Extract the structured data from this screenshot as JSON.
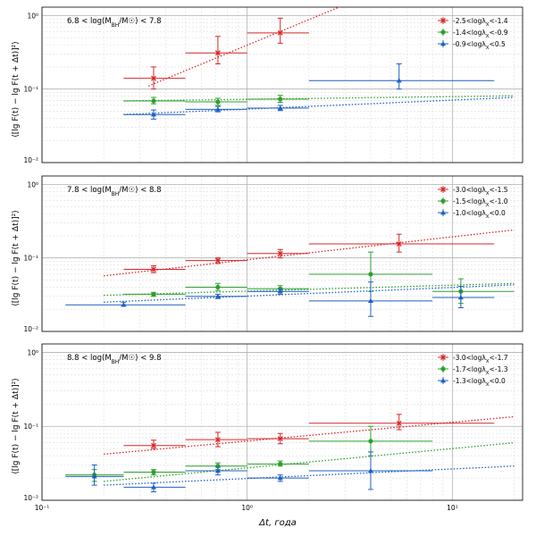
{
  "figure": {
    "xlabel": "Δt, года",
    "ylabel": "⟨[lg F(t) − lg F(t + Δt)]²⟩",
    "colors": {
      "red": "#d62728",
      "green": "#2ca02c",
      "blue": "#1f5fc4",
      "grid_major": "#b0b0b0",
      "grid_minor": "#dcdcdc",
      "axis": "#000000"
    },
    "x_ticks": [
      "10⁻¹",
      "10⁰",
      "10¹"
    ],
    "y_ticks": [
      "10⁻²",
      "10⁻¹",
      "10⁰"
    ]
  },
  "chart_data": [
    {
      "type": "scatter",
      "panel_label": "6.8 < log(M_BH/M☉) < 7.8",
      "xscale": "log",
      "yscale": "log",
      "xlim": [
        0.1,
        22
      ],
      "ylim": [
        0.01,
        1.3
      ],
      "grid": true,
      "legend_position": "top-right",
      "series": [
        {
          "name": "-2.5<logλ_X<-1.4",
          "color": "red",
          "marker": "x",
          "points": [
            {
              "x": 0.35,
              "xerr": [
                0.25,
                0.5
              ],
              "y": 0.14,
              "yerr": [
                0.1,
                0.2
              ]
            },
            {
              "x": 0.72,
              "xerr": [
                0.5,
                1.0
              ],
              "y": 0.31,
              "yerr": [
                0.22,
                0.52
              ]
            },
            {
              "x": 1.45,
              "xerr": [
                1.0,
                2.0
              ],
              "y": 0.58,
              "yerr": [
                0.42,
                0.92
              ]
            }
          ],
          "fit": {
            "x": [
              0.33,
              2.9
            ],
            "y": [
              0.11,
              1.35
            ]
          }
        },
        {
          "name": "-1.4<logλ_X<-0.9",
          "color": "green",
          "marker": "o",
          "points": [
            {
              "x": 0.35,
              "xerr": [
                0.25,
                0.5
              ],
              "y": 0.069,
              "yerr": [
                0.063,
                0.077
              ]
            },
            {
              "x": 0.72,
              "xerr": [
                0.5,
                1.0
              ],
              "y": 0.067,
              "yerr": [
                0.06,
                0.075
              ]
            },
            {
              "x": 1.45,
              "xerr": [
                1.0,
                2.0
              ],
              "y": 0.073,
              "yerr": [
                0.066,
                0.082
              ]
            }
          ],
          "fit": {
            "x": [
              0.25,
              20
            ],
            "y": [
              0.069,
              0.081
            ]
          }
        },
        {
          "name": "-0.9<logλ_X<0.5",
          "color": "blue",
          "marker": "^",
          "points": [
            {
              "x": 0.35,
              "xerr": [
                0.25,
                0.5
              ],
              "y": 0.045,
              "yerr": [
                0.039,
                0.052
              ]
            },
            {
              "x": 0.72,
              "xerr": [
                0.5,
                1.0
              ],
              "y": 0.053,
              "yerr": [
                0.049,
                0.058
              ]
            },
            {
              "x": 1.45,
              "xerr": [
                1.0,
                2.0
              ],
              "y": 0.055,
              "yerr": [
                0.051,
                0.06
              ]
            },
            {
              "x": 5.5,
              "xerr": [
                2.0,
                16.0
              ],
              "y": 0.13,
              "yerr": [
                0.1,
                0.22
              ]
            }
          ],
          "fit": {
            "x": [
              0.25,
              20
            ],
            "y": [
              0.045,
              0.077
            ]
          }
        }
      ]
    },
    {
      "type": "scatter",
      "panel_label": "7.8 < log(M_BH/M☉) < 8.8",
      "xscale": "log",
      "yscale": "log",
      "xlim": [
        0.1,
        22
      ],
      "ylim": [
        0.01,
        1.3
      ],
      "grid": true,
      "legend_position": "top-right",
      "series": [
        {
          "name": "-3.0<logλ_X<-1.5",
          "color": "red",
          "marker": "x",
          "points": [
            {
              "x": 0.35,
              "xerr": [
                0.25,
                0.5
              ],
              "y": 0.07,
              "yerr": [
                0.063,
                0.078
              ]
            },
            {
              "x": 0.72,
              "xerr": [
                0.5,
                1.0
              ],
              "y": 0.092,
              "yerr": [
                0.084,
                0.1
              ]
            },
            {
              "x": 1.45,
              "xerr": [
                1.0,
                2.0
              ],
              "y": 0.115,
              "yerr": [
                0.1,
                0.13
              ]
            },
            {
              "x": 5.5,
              "xerr": [
                2.0,
                16.0
              ],
              "y": 0.155,
              "yerr": [
                0.12,
                0.21
              ]
            }
          ],
          "fit": {
            "x": [
              0.2,
              20
            ],
            "y": [
              0.057,
              0.24
            ]
          }
        },
        {
          "name": "-1.5<logλ_X<-1.0",
          "color": "green",
          "marker": "o",
          "points": [
            {
              "x": 0.35,
              "xerr": [
                0.25,
                0.5
              ],
              "y": 0.032,
              "yerr": [
                0.03,
                0.034
              ]
            },
            {
              "x": 0.72,
              "xerr": [
                0.5,
                1.0
              ],
              "y": 0.04,
              "yerr": [
                0.036,
                0.045
              ]
            },
            {
              "x": 1.45,
              "xerr": [
                1.0,
                2.0
              ],
              "y": 0.038,
              "yerr": [
                0.035,
                0.042
              ]
            },
            {
              "x": 4.0,
              "xerr": [
                2.0,
                8.0
              ],
              "y": 0.06,
              "yerr": [
                0.035,
                0.12
              ]
            },
            {
              "x": 11.0,
              "xerr": [
                8.0,
                20.0
              ],
              "y": 0.035,
              "yerr": [
                0.024,
                0.052
              ]
            }
          ],
          "fit": {
            "x": [
              0.2,
              20
            ],
            "y": [
              0.031,
              0.045
            ]
          }
        },
        {
          "name": "-1.0<logλ_X<0.0",
          "color": "blue",
          "marker": "^",
          "points": [
            {
              "x": 0.25,
              "xerr": [
                0.13,
                0.5
              ],
              "y": 0.023,
              "yerr": [
                0.022,
                0.025
              ]
            },
            {
              "x": 0.72,
              "xerr": [
                0.5,
                1.0
              ],
              "y": 0.03,
              "yerr": [
                0.028,
                0.032
              ]
            },
            {
              "x": 1.45,
              "xerr": [
                1.0,
                2.0
              ],
              "y": 0.035,
              "yerr": [
                0.032,
                0.038
              ]
            },
            {
              "x": 4.0,
              "xerr": [
                2.0,
                8.0
              ],
              "y": 0.026,
              "yerr": [
                0.016,
                0.047
              ]
            },
            {
              "x": 11.0,
              "xerr": [
                8.0,
                16.0
              ],
              "y": 0.029,
              "yerr": [
                0.021,
                0.041
              ]
            }
          ],
          "fit": {
            "x": [
              0.2,
              20
            ],
            "y": [
              0.025,
              0.043
            ]
          }
        }
      ]
    },
    {
      "type": "scatter",
      "panel_label": "8.8 < log(M_BH/M☉) < 9.8",
      "xscale": "log",
      "yscale": "log",
      "xlim": [
        0.1,
        22
      ],
      "ylim": [
        0.01,
        1.3
      ],
      "grid": true,
      "legend_position": "top-right",
      "series": [
        {
          "name": "-3.0<logλ_X<-1.7",
          "color": "red",
          "marker": "x",
          "points": [
            {
              "x": 0.35,
              "xerr": [
                0.25,
                0.5
              ],
              "y": 0.055,
              "yerr": [
                0.05,
                0.065
              ]
            },
            {
              "x": 0.72,
              "xerr": [
                0.5,
                1.0
              ],
              "y": 0.066,
              "yerr": [
                0.053,
                0.083
              ]
            },
            {
              "x": 1.45,
              "xerr": [
                1.0,
                2.0
              ],
              "y": 0.068,
              "yerr": [
                0.058,
                0.08
              ]
            },
            {
              "x": 5.5,
              "xerr": [
                2.0,
                16.0
              ],
              "y": 0.11,
              "yerr": [
                0.09,
                0.145
              ]
            }
          ],
          "fit": {
            "x": [
              0.2,
              20
            ],
            "y": [
              0.042,
              0.135
            ]
          }
        },
        {
          "name": "-1.7<logλ_X<-1.3",
          "color": "green",
          "marker": "o",
          "points": [
            {
              "x": 0.18,
              "xerr": [
                0.13,
                0.25
              ],
              "y": 0.022,
              "yerr": [
                0.018,
                0.026
              ]
            },
            {
              "x": 0.35,
              "xerr": [
                0.25,
                0.5
              ],
              "y": 0.024,
              "yerr": [
                0.022,
                0.026
              ]
            },
            {
              "x": 0.72,
              "xerr": [
                0.5,
                1.0
              ],
              "y": 0.029,
              "yerr": [
                0.026,
                0.032
              ]
            },
            {
              "x": 1.45,
              "xerr": [
                1.0,
                2.0
              ],
              "y": 0.031,
              "yerr": [
                0.029,
                0.034
              ]
            },
            {
              "x": 4.0,
              "xerr": [
                2.0,
                8.0
              ],
              "y": 0.063,
              "yerr": [
                0.04,
                0.1
              ]
            }
          ],
          "fit": {
            "x": [
              0.2,
              20
            ],
            "y": [
              0.018,
              0.06
            ]
          }
        },
        {
          "name": "-1.3<logλ_X<0.0",
          "color": "blue",
          "marker": "^",
          "points": [
            {
              "x": 0.18,
              "xerr": [
                0.13,
                0.25
              ],
              "y": 0.021,
              "yerr": [
                0.016,
                0.03
              ]
            },
            {
              "x": 0.35,
              "xerr": [
                0.25,
                0.5
              ],
              "y": 0.015,
              "yerr": [
                0.013,
                0.017
              ]
            },
            {
              "x": 0.72,
              "xerr": [
                0.5,
                1.0
              ],
              "y": 0.025,
              "yerr": [
                0.022,
                0.028
              ]
            },
            {
              "x": 1.45,
              "xerr": [
                1.0,
                2.0
              ],
              "y": 0.02,
              "yerr": [
                0.018,
                0.022
              ]
            },
            {
              "x": 4.0,
              "xerr": [
                2.0,
                8.0
              ],
              "y": 0.025,
              "yerr": [
                0.014,
                0.045
              ]
            }
          ],
          "fit": {
            "x": [
              0.2,
              20
            ],
            "y": [
              0.016,
              0.029
            ]
          }
        }
      ]
    }
  ]
}
